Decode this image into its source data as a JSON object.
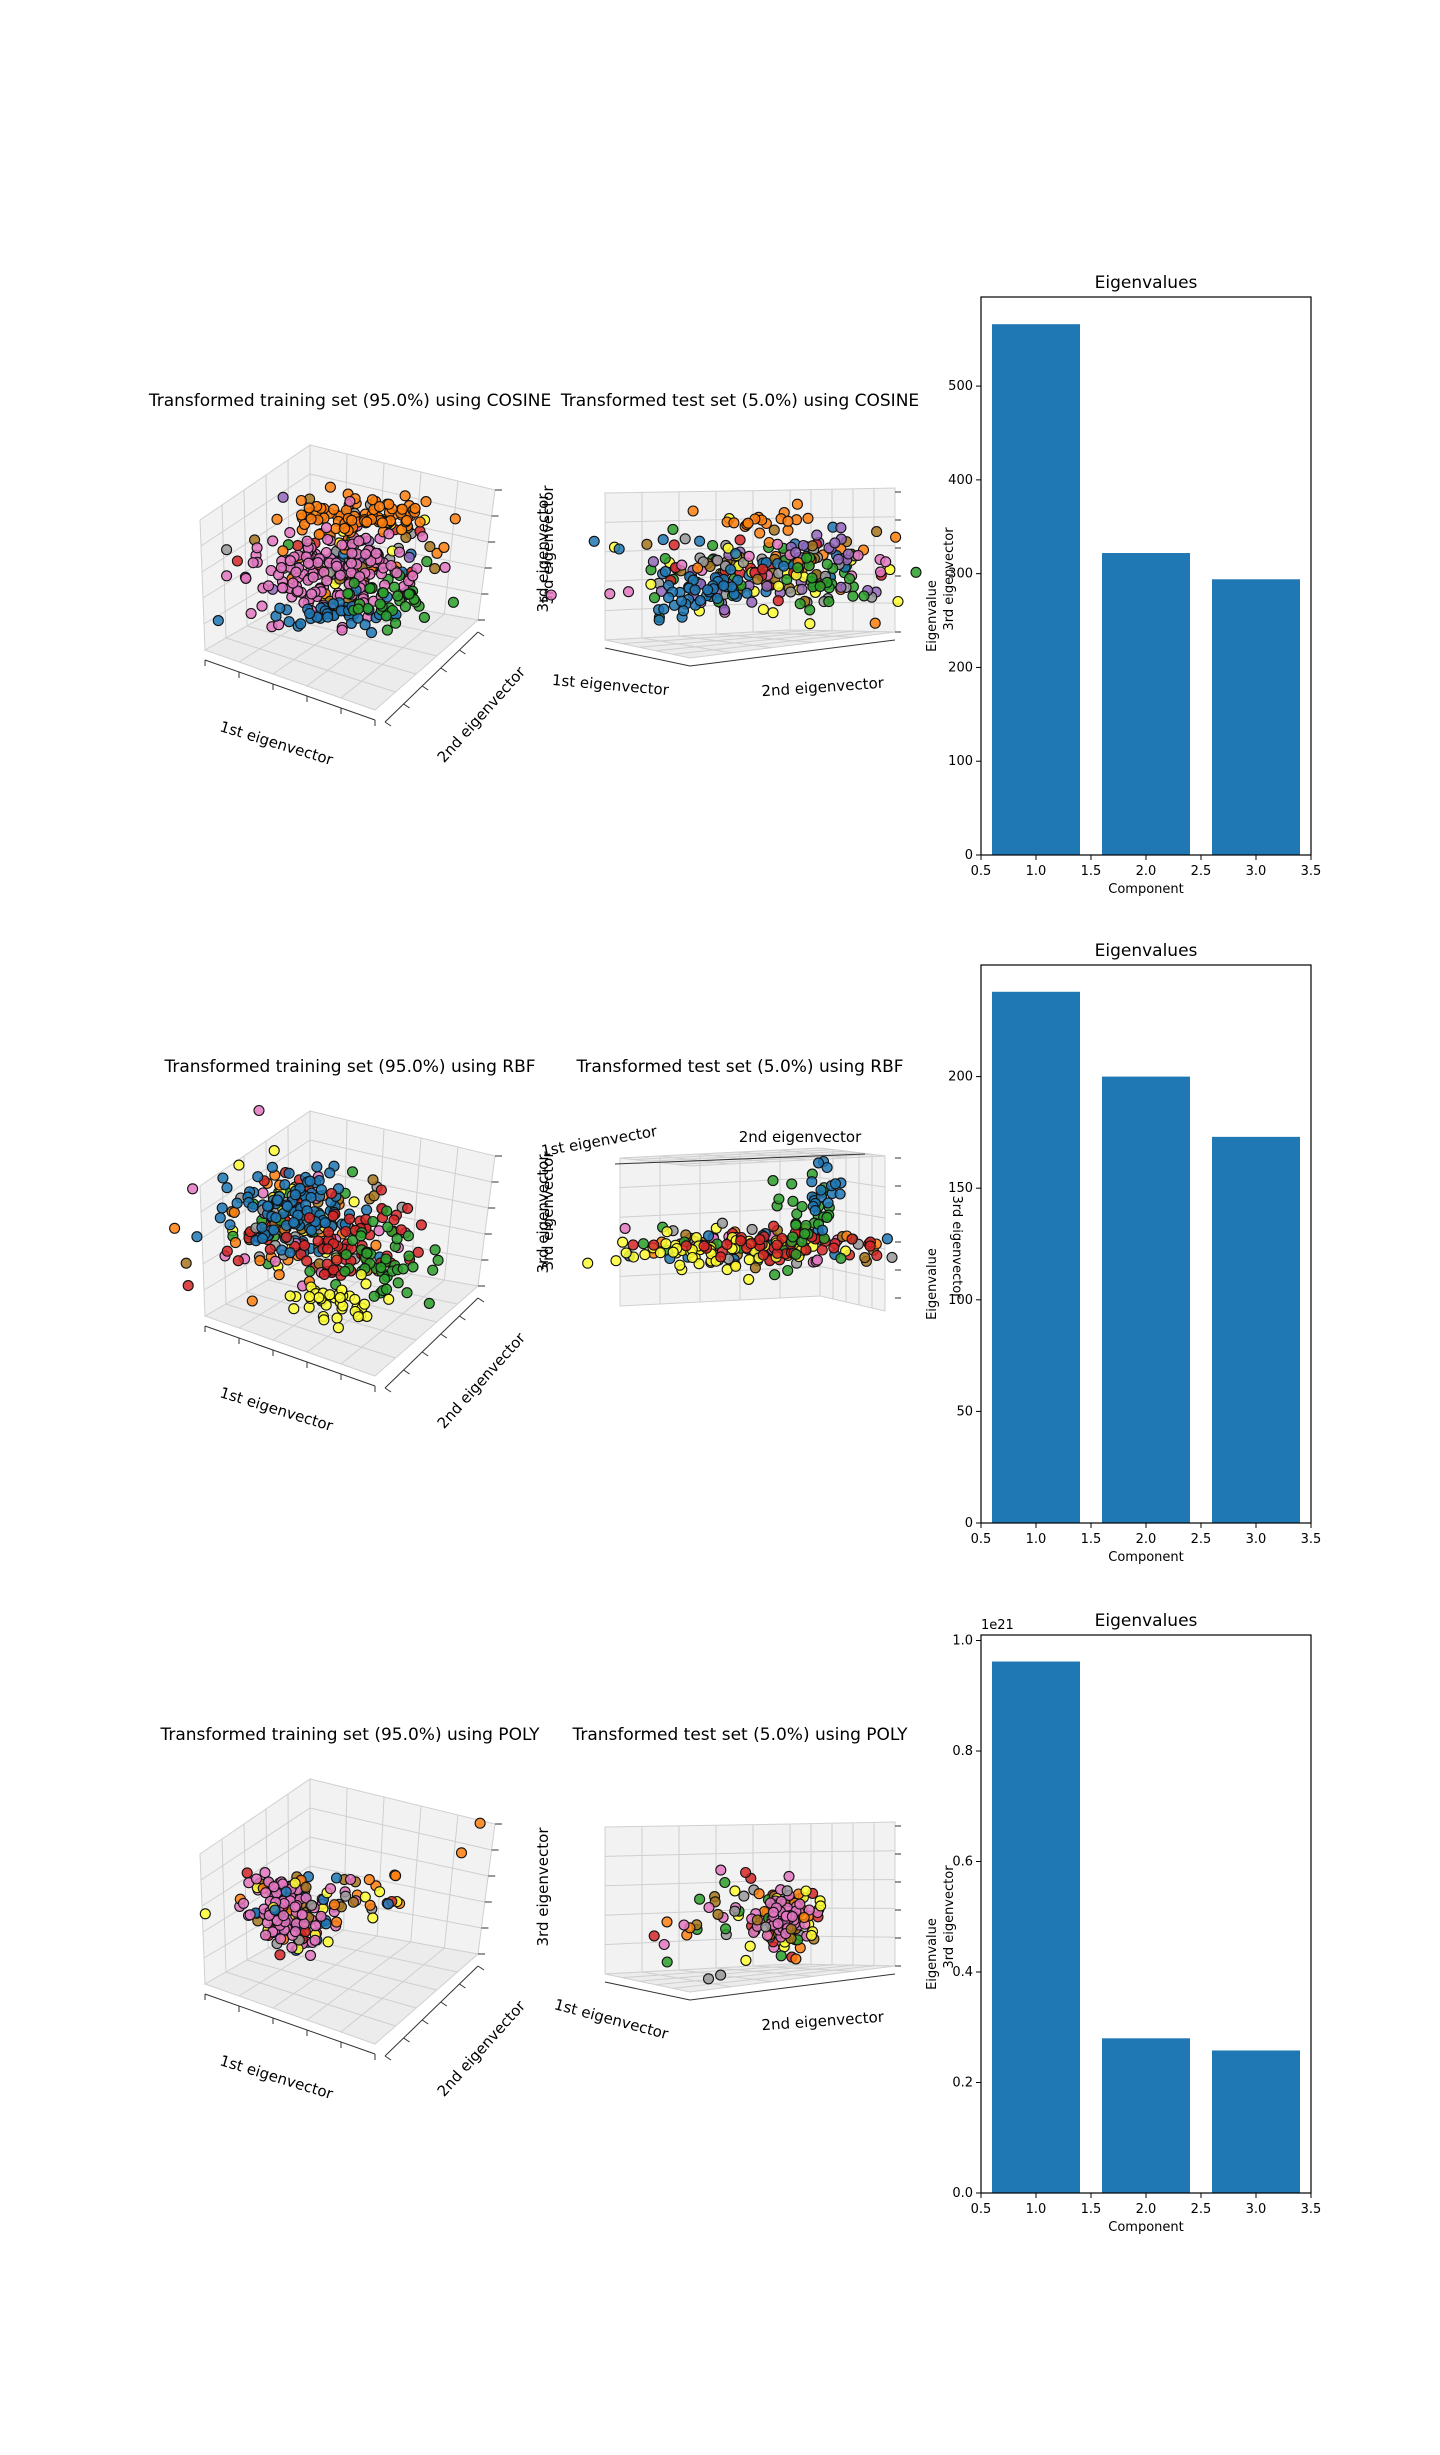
{
  "chart_data": [
    {
      "type": "scatter",
      "subtype": "3d",
      "title": "Transformed training set (95.0%) using COSINE",
      "xlabel": "1st eigenvector",
      "ylabel": "2nd eigenvector",
      "zlabel": "3rd eigenvector",
      "grid": true,
      "palette": [
        "#ff7f0e",
        "#e377c2",
        "#1f77b4",
        "#2ca02c",
        "#d62728",
        "#ffff33",
        "#a6761d",
        "#999999",
        "#9467bd"
      ]
    },
    {
      "type": "scatter",
      "subtype": "3d",
      "title": "Transformed test set (5.0%) using COSINE",
      "xlabel": "1st eigenvector",
      "ylabel": "2nd eigenvector",
      "zlabel": "3rd eigenvector",
      "grid": true,
      "palette": [
        "#ff7f0e",
        "#e377c2",
        "#1f77b4",
        "#2ca02c",
        "#d62728",
        "#ffff33",
        "#a6761d",
        "#999999",
        "#9467bd"
      ]
    },
    {
      "type": "bar",
      "title": "Eigenvalues",
      "xlabel": "Component",
      "ylabel": "Eigenvalue",
      "x": [
        1,
        2,
        3
      ],
      "values": [
        566,
        322,
        294
      ],
      "xlim": [
        0.5,
        3.5
      ],
      "ylim": [
        0,
        595
      ],
      "xticks": [
        "0.5",
        "1.0",
        "1.5",
        "2.0",
        "2.5",
        "3.0",
        "3.5"
      ],
      "yticks": [
        0,
        100,
        200,
        300,
        400,
        500
      ],
      "ytick_labels": [
        "0",
        "100",
        "200",
        "300",
        "400",
        "500"
      ],
      "overlay_label": "3rd eigenvector",
      "color": "#1f77b4"
    },
    {
      "type": "scatter",
      "subtype": "3d",
      "title": "Transformed training set (95.0%) using RBF",
      "xlabel": "1st eigenvector",
      "ylabel": "2nd eigenvector",
      "zlabel": "3rd eigenvector",
      "grid": true,
      "palette": [
        "#1f77b4",
        "#d62728",
        "#2ca02c",
        "#ffff33",
        "#999999",
        "#e377c2",
        "#ff7f0e",
        "#a6761d"
      ]
    },
    {
      "type": "scatter",
      "subtype": "3d",
      "title": "Transformed test set (5.0%) using RBF",
      "xlabel": "1st eigenvector",
      "ylabel": "2nd eigenvector",
      "zlabel": "3rd eigenvector",
      "grid": true,
      "palette": [
        "#ffff33",
        "#d62728",
        "#2ca02c",
        "#1f77b4",
        "#999999",
        "#e377c2",
        "#ff7f0e",
        "#a6761d"
      ]
    },
    {
      "type": "bar",
      "title": "Eigenvalues",
      "xlabel": "Component",
      "ylabel": "Eigenvalue",
      "x": [
        1,
        2,
        3
      ],
      "values": [
        238,
        200,
        173
      ],
      "xlim": [
        0.5,
        3.5
      ],
      "ylim": [
        0,
        250
      ],
      "xticks": [
        "0.5",
        "1.0",
        "1.5",
        "2.0",
        "2.5",
        "3.0",
        "3.5"
      ],
      "yticks": [
        0,
        50,
        100,
        150,
        200
      ],
      "ytick_labels": [
        "0",
        "50",
        "100",
        "150",
        "200"
      ],
      "overlay_label": "3rd eigenvector",
      "color": "#1f77b4"
    },
    {
      "type": "scatter",
      "subtype": "3d",
      "title": "Transformed training set (95.0%) using POLY",
      "xlabel": "1st eigenvector",
      "ylabel": "2nd eigenvector",
      "zlabel": "",
      "grid": true,
      "palette": [
        "#e377c2",
        "#ff7f0e",
        "#d62728",
        "#ffff33",
        "#1f77b4",
        "#999999",
        "#a6761d"
      ]
    },
    {
      "type": "scatter",
      "subtype": "3d",
      "title": "Transformed test set (5.0%) using POLY",
      "xlabel": "1st eigenvector",
      "ylabel": "2nd eigenvector",
      "zlabel": "3rd eigenvector",
      "grid": true,
      "palette": [
        "#e377c2",
        "#ff7f0e",
        "#d62728",
        "#ffff33",
        "#2ca02c",
        "#999999",
        "#a6761d"
      ]
    },
    {
      "type": "bar",
      "title": "Eigenvalues",
      "xlabel": "Component",
      "ylabel": "Eigenvalue",
      "x": [
        1,
        2,
        3
      ],
      "values": [
        0.962,
        0.28,
        0.258
      ],
      "xlim": [
        0.5,
        3.5
      ],
      "ylim": [
        0,
        1.01
      ],
      "scale_label": "1e21",
      "xticks": [
        "0.5",
        "1.0",
        "1.5",
        "2.0",
        "2.5",
        "3.0",
        "3.5"
      ],
      "yticks": [
        0,
        0.2,
        0.4,
        0.6,
        0.8,
        1.0
      ],
      "ytick_labels": [
        "0.0",
        "0.2",
        "0.4",
        "0.6",
        "0.8",
        "1.0"
      ],
      "overlay_label": "3rd eigenvector",
      "color": "#1f77b4"
    }
  ]
}
